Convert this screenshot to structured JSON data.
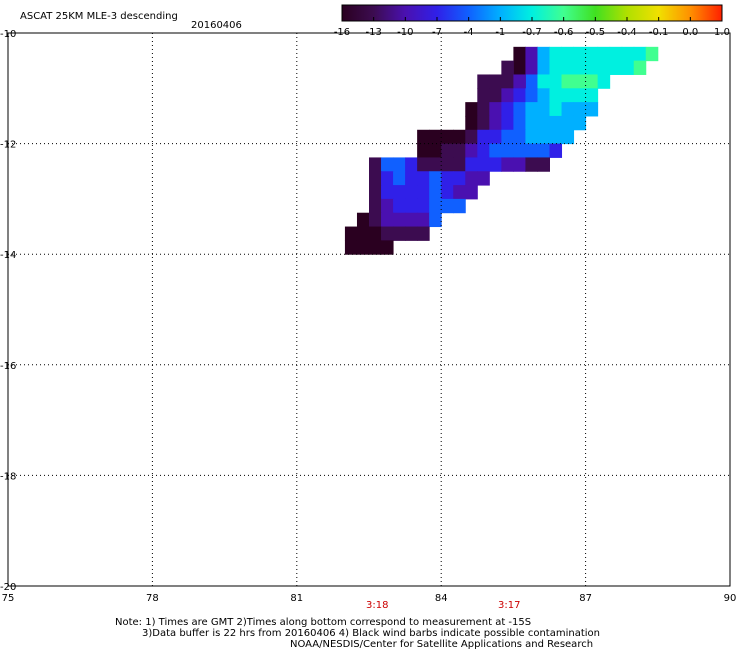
{
  "header": {
    "title": "ASCAT 25KM MLE-3 descending",
    "date": "20160406"
  },
  "colorbar": {
    "labels": [
      "-16",
      "-13",
      "-10",
      "-7",
      "-4",
      "-1",
      "-0.7",
      "-0.6",
      "-0.5",
      "-0.4",
      "-0.1",
      "0.0",
      "1.0"
    ],
    "colors": [
      "#2a0020",
      "#3c0c50",
      "#4a10b0",
      "#3020e8",
      "#1060ff",
      "#00b0ff",
      "#00f0e0",
      "#40ff90",
      "#40e020",
      "#b0e000",
      "#f0e000",
      "#ff9000",
      "#ff2000"
    ]
  },
  "axes": {
    "lon_ticks": [
      "75",
      "78",
      "81",
      "84",
      "87",
      "90"
    ],
    "lat_ticks": [
      "-10",
      "-12",
      "-14",
      "-16",
      "-18",
      "-20"
    ],
    "lon_range": [
      75,
      90
    ],
    "lat_range": [
      -20,
      -10
    ]
  },
  "times": [
    {
      "label": "3:18",
      "lon": 82.6
    },
    {
      "label": "3:17",
      "lon": 85.3
    }
  ],
  "notes": {
    "line1": "Note: 1) Times are GMT 2)Times along bottom correspond to measurement at -15S",
    "line2": "3)Data buffer is 22 hrs from 20160406 4) Black wind barbs indicate possible contamination",
    "line3": "NOAA/NESDIS/Center for Satellite Applications and Research"
  },
  "swath": {
    "cell_deg": 0.25,
    "cells": [
      [
        85.5,
        -10.25,
        0
      ],
      [
        85.5,
        -10.5,
        0
      ],
      [
        85.75,
        -10.25,
        2
      ],
      [
        85.75,
        -10.5,
        2
      ],
      [
        85.75,
        -10.75,
        4
      ],
      [
        86.0,
        -10.25,
        5
      ],
      [
        86.0,
        -10.5,
        5
      ],
      [
        86.0,
        -10.75,
        6
      ],
      [
        86.25,
        -10.25,
        6
      ],
      [
        86.25,
        -10.5,
        6
      ],
      [
        86.25,
        -10.75,
        6
      ],
      [
        86.5,
        -10.25,
        6
      ],
      [
        86.5,
        -10.5,
        6
      ],
      [
        86.5,
        -10.75,
        7
      ],
      [
        86.75,
        -10.25,
        6
      ],
      [
        86.75,
        -10.5,
        6
      ],
      [
        86.75,
        -10.75,
        7
      ],
      [
        87.0,
        -10.25,
        6
      ],
      [
        87.0,
        -10.5,
        6
      ],
      [
        87.0,
        -10.75,
        7
      ],
      [
        87.25,
        -10.25,
        6
      ],
      [
        87.25,
        -10.5,
        6
      ],
      [
        87.5,
        -10.25,
        6
      ],
      [
        87.5,
        -10.5,
        6
      ],
      [
        87.75,
        -10.25,
        6
      ],
      [
        87.75,
        -10.5,
        6
      ],
      [
        88.0,
        -10.25,
        6
      ],
      [
        88.0,
        -10.5,
        7
      ],
      [
        88.25,
        -10.25,
        7
      ],
      [
        84.75,
        -10.75,
        1
      ],
      [
        84.75,
        -11.0,
        1
      ],
      [
        85.0,
        -10.75,
        1
      ],
      [
        85.0,
        -11.0,
        1
      ],
      [
        85.25,
        -10.5,
        1
      ],
      [
        85.25,
        -10.75,
        1
      ],
      [
        85.25,
        -11.0,
        2
      ],
      [
        85.5,
        -10.75,
        2
      ],
      [
        85.5,
        -11.0,
        3
      ],
      [
        85.75,
        -11.0,
        4
      ],
      [
        86.0,
        -11.0,
        5
      ],
      [
        86.25,
        -11.0,
        6
      ],
      [
        86.5,
        -11.0,
        6
      ],
      [
        86.75,
        -11.0,
        6
      ],
      [
        87.0,
        -11.0,
        6
      ],
      [
        87.25,
        -10.75,
        6
      ],
      [
        84.5,
        -11.25,
        0
      ],
      [
        84.75,
        -11.25,
        1
      ],
      [
        85.0,
        -11.25,
        2
      ],
      [
        85.25,
        -11.25,
        3
      ],
      [
        85.5,
        -11.25,
        4
      ],
      [
        85.75,
        -11.25,
        5
      ],
      [
        86.0,
        -11.25,
        5
      ],
      [
        86.25,
        -11.25,
        6
      ],
      [
        86.5,
        -11.25,
        5
      ],
      [
        86.75,
        -11.25,
        5
      ],
      [
        87.0,
        -11.25,
        5
      ],
      [
        84.5,
        -11.5,
        0
      ],
      [
        84.75,
        -11.5,
        1
      ],
      [
        85.0,
        -11.5,
        2
      ],
      [
        85.25,
        -11.5,
        3
      ],
      [
        85.5,
        -11.5,
        4
      ],
      [
        85.75,
        -11.5,
        5
      ],
      [
        86.0,
        -11.5,
        5
      ],
      [
        86.25,
        -11.5,
        5
      ],
      [
        86.5,
        -11.5,
        5
      ],
      [
        86.75,
        -11.5,
        5
      ],
      [
        83.5,
        -11.75,
        0
      ],
      [
        83.75,
        -11.75,
        0
      ],
      [
        84.0,
        -11.75,
        0
      ],
      [
        84.25,
        -11.75,
        0
      ],
      [
        84.5,
        -11.75,
        1
      ],
      [
        84.75,
        -11.75,
        3
      ],
      [
        85.0,
        -11.75,
        3
      ],
      [
        85.25,
        -11.75,
        4
      ],
      [
        85.5,
        -11.75,
        4
      ],
      [
        85.75,
        -11.75,
        5
      ],
      [
        86.0,
        -11.75,
        5
      ],
      [
        86.25,
        -11.75,
        5
      ],
      [
        86.5,
        -11.75,
        5
      ],
      [
        83.5,
        -12.0,
        0
      ],
      [
        83.75,
        -12.0,
        0
      ],
      [
        84.0,
        -12.0,
        1
      ],
      [
        84.25,
        -12.0,
        1
      ],
      [
        84.5,
        -12.0,
        2
      ],
      [
        84.75,
        -12.0,
        3
      ],
      [
        85.0,
        -12.0,
        4
      ],
      [
        85.25,
        -12.0,
        4
      ],
      [
        85.5,
        -12.0,
        4
      ],
      [
        85.75,
        -12.0,
        4
      ],
      [
        86.0,
        -12.0,
        4
      ],
      [
        86.25,
        -12.0,
        3
      ],
      [
        82.5,
        -12.25,
        1
      ],
      [
        82.75,
        -12.25,
        4
      ],
      [
        83.0,
        -12.25,
        4
      ],
      [
        83.25,
        -12.25,
        3
      ],
      [
        83.5,
        -12.25,
        1
      ],
      [
        83.75,
        -12.25,
        1
      ],
      [
        84.0,
        -12.25,
        1
      ],
      [
        84.25,
        -12.25,
        1
      ],
      [
        84.5,
        -12.25,
        3
      ],
      [
        84.75,
        -12.25,
        3
      ],
      [
        85.0,
        -12.25,
        3
      ],
      [
        85.25,
        -12.25,
        2
      ],
      [
        85.5,
        -12.25,
        2
      ],
      [
        85.75,
        -12.25,
        1
      ],
      [
        86.0,
        -12.25,
        1
      ],
      [
        82.5,
        -12.5,
        1
      ],
      [
        82.75,
        -12.5,
        3
      ],
      [
        83.0,
        -12.5,
        4
      ],
      [
        83.25,
        -12.5,
        3
      ],
      [
        83.5,
        -12.5,
        3
      ],
      [
        83.75,
        -12.5,
        4
      ],
      [
        84.0,
        -12.5,
        3
      ],
      [
        84.25,
        -12.5,
        3
      ],
      [
        84.5,
        -12.5,
        2
      ],
      [
        84.75,
        -12.5,
        2
      ],
      [
        82.5,
        -12.75,
        1
      ],
      [
        82.75,
        -12.75,
        3
      ],
      [
        83.0,
        -12.75,
        3
      ],
      [
        83.25,
        -12.75,
        3
      ],
      [
        83.5,
        -12.75,
        3
      ],
      [
        83.75,
        -12.75,
        4
      ],
      [
        84.0,
        -12.75,
        3
      ],
      [
        84.25,
        -12.75,
        2
      ],
      [
        84.5,
        -12.75,
        2
      ],
      [
        82.5,
        -13.0,
        1
      ],
      [
        82.75,
        -13.0,
        2
      ],
      [
        83.0,
        -13.0,
        3
      ],
      [
        83.25,
        -13.0,
        3
      ],
      [
        83.5,
        -13.0,
        3
      ],
      [
        83.75,
        -13.0,
        4
      ],
      [
        84.0,
        -13.0,
        4
      ],
      [
        84.25,
        -13.0,
        4
      ],
      [
        82.25,
        -13.25,
        0
      ],
      [
        82.5,
        -13.25,
        1
      ],
      [
        82.75,
        -13.25,
        2
      ],
      [
        83.0,
        -13.25,
        2
      ],
      [
        83.25,
        -13.25,
        2
      ],
      [
        83.5,
        -13.25,
        2
      ],
      [
        83.75,
        -13.25,
        4
      ],
      [
        82.0,
        -13.5,
        0
      ],
      [
        82.25,
        -13.5,
        0
      ],
      [
        82.5,
        -13.5,
        0
      ],
      [
        82.75,
        -13.5,
        1
      ],
      [
        83.0,
        -13.5,
        1
      ],
      [
        83.25,
        -13.5,
        1
      ],
      [
        83.5,
        -13.5,
        1
      ],
      [
        82.0,
        -13.75,
        0
      ],
      [
        82.25,
        -13.75,
        0
      ],
      [
        82.5,
        -13.75,
        0
      ],
      [
        82.75,
        -13.75,
        0
      ]
    ]
  }
}
